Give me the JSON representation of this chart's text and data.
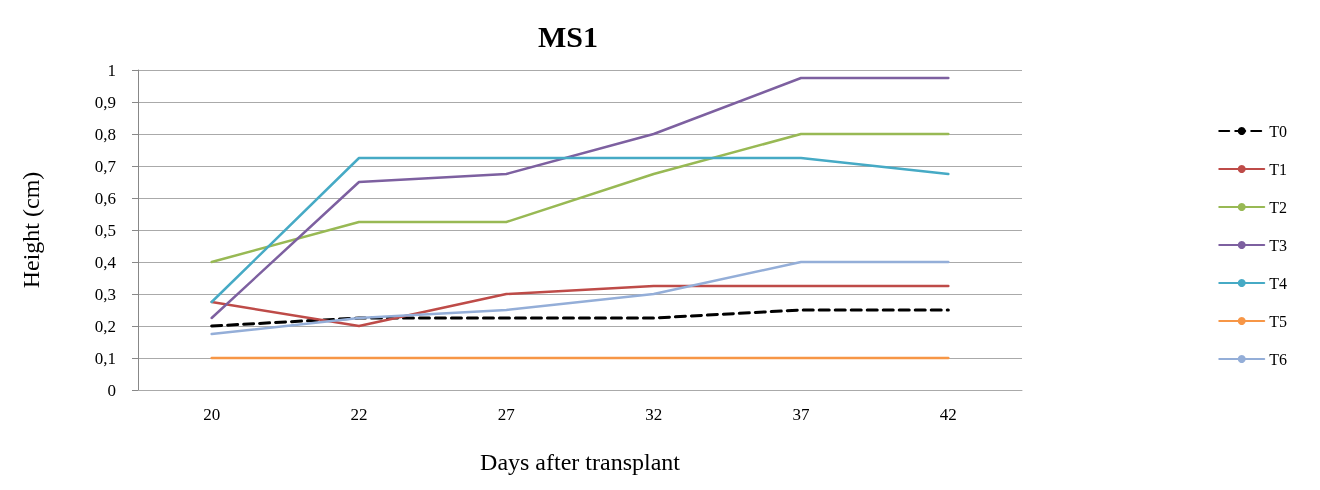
{
  "chart_data": {
    "type": "line",
    "title": "MS1",
    "xlabel": "Days after transplant",
    "ylabel": "Height (cm)",
    "categories": [
      "20",
      "22",
      "27",
      "32",
      "37",
      "42"
    ],
    "ylim": [
      0,
      1
    ],
    "yticks": [
      0,
      {
        "value": 0.1,
        "label": "0,1"
      },
      {
        "value": 0.2,
        "label": "0,2"
      },
      {
        "value": 0.3,
        "label": "0,3"
      },
      {
        "value": 0.4,
        "label": "0,4"
      },
      {
        "value": 0.5,
        "label": "0,5"
      },
      {
        "value": 0.6,
        "label": "0,6"
      },
      {
        "value": 0.7,
        "label": "0,7"
      },
      {
        "value": 0.8,
        "label": "0,8"
      },
      {
        "value": 0.9,
        "label": "0,9"
      },
      1
    ],
    "grid": "y",
    "legend": "right",
    "marker": "none",
    "series": [
      {
        "name": "T0",
        "color": "#000000",
        "line_style": "dashed",
        "values": [
          0.2,
          0.225,
          0.225,
          0.225,
          0.25,
          0.25
        ]
      },
      {
        "name": "T1",
        "color": "#be4b48",
        "values": [
          0.275,
          0.2,
          0.3,
          0.325,
          0.325,
          0.325
        ]
      },
      {
        "name": "T2",
        "color": "#98b954",
        "values": [
          0.4,
          0.525,
          0.525,
          0.675,
          0.8,
          0.8
        ]
      },
      {
        "name": "T3",
        "color": "#7d60a0",
        "values": [
          0.225,
          0.65,
          0.675,
          0.8,
          0.975,
          0.975
        ]
      },
      {
        "name": "T4",
        "color": "#46aac5",
        "values": [
          0.275,
          0.725,
          0.725,
          0.725,
          0.725,
          0.675
        ]
      },
      {
        "name": "T5",
        "color": "#f79646",
        "values": [
          0.1,
          0.1,
          0.1,
          0.1,
          0.1,
          0.1
        ]
      },
      {
        "name": "T6",
        "color": "#94aed8",
        "values": [
          0.175,
          0.225,
          0.25,
          0.3,
          0.4,
          0.4
        ]
      }
    ]
  }
}
